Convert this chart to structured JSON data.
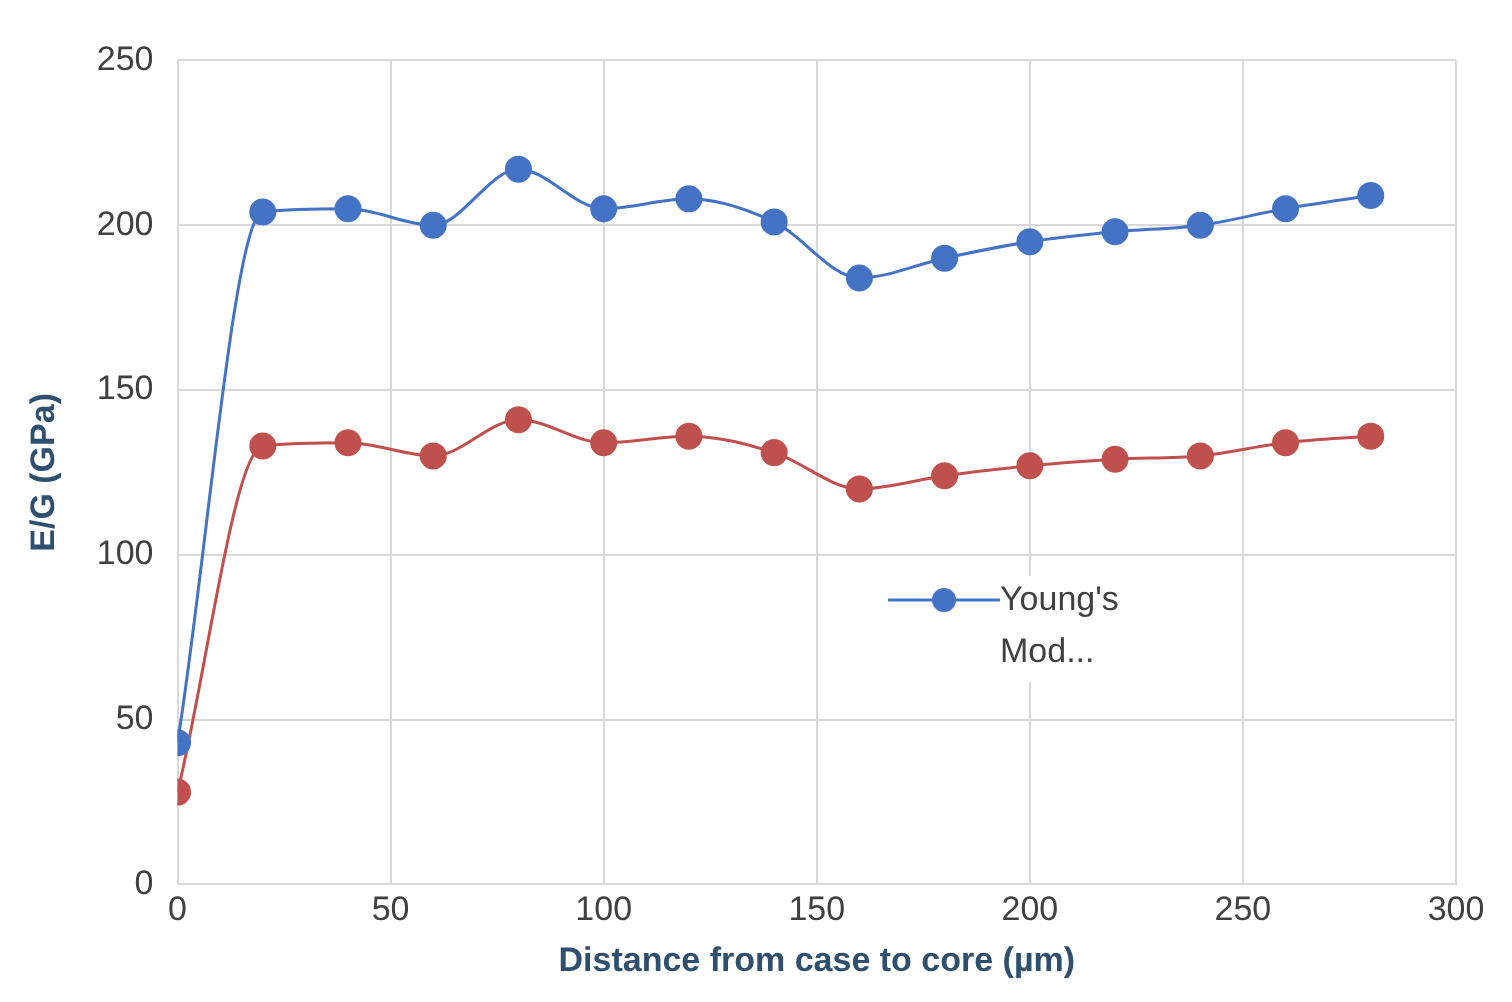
{
  "chart_data": {
    "type": "line",
    "xlabel": "Distance from case to core (µm)",
    "ylabel": "E/G (GPa)",
    "x": [
      0,
      20,
      40,
      60,
      80,
      100,
      120,
      140,
      160,
      180,
      200,
      220,
      240,
      260,
      280
    ],
    "series": [
      {
        "name": "Young's Mod...",
        "color": "#4472c4",
        "values": [
          43,
          204,
          205,
          200,
          217,
          205,
          208,
          201,
          184,
          190,
          195,
          198,
          200,
          205,
          209
        ]
      },
      {
        "color": "#c0504d",
        "values": [
          28,
          133,
          134,
          130,
          141,
          134,
          136,
          131,
          120,
          124,
          127,
          129,
          130,
          134,
          136
        ]
      }
    ],
    "xlim": [
      0,
      300
    ],
    "xticks": [
      0,
      50,
      100,
      150,
      200,
      250,
      300
    ],
    "ylim": [
      0,
      250
    ],
    "yticks": [
      0,
      50,
      100,
      150,
      200,
      250
    ],
    "grid": true,
    "legend": "right",
    "marker": "circle",
    "line_style": "solid"
  }
}
